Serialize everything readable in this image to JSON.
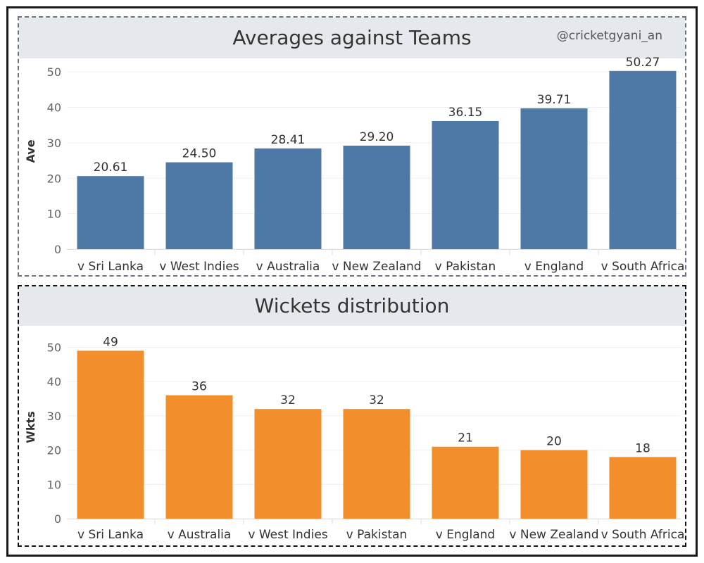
{
  "watermark": "@cricketgyani_an",
  "chart_data": [
    {
      "type": "bar",
      "title": "Averages against Teams",
      "ylabel": "Ave",
      "xlabel": "",
      "categories": [
        "v Sri Lanka",
        "v West Indies",
        "v Australia",
        "v New Zealand",
        "v Pakistan",
        "v England",
        "v South Africa"
      ],
      "values": [
        20.61,
        24.5,
        28.41,
        29.2,
        36.15,
        39.71,
        50.27
      ],
      "value_labels": [
        "20.61",
        "24.50",
        "28.41",
        "29.20",
        "36.15",
        "39.71",
        "50.27"
      ],
      "yticks": [
        0,
        10,
        20,
        30,
        40,
        50
      ],
      "ylim": [
        0,
        55
      ],
      "grid": true,
      "color": "#4e79a7"
    },
    {
      "type": "bar",
      "title": "Wickets distribution",
      "ylabel": "Wkts",
      "xlabel": "",
      "categories": [
        "v Sri Lanka",
        "v Australia",
        "v West Indies",
        "v Pakistan",
        "v England",
        "v New Zealand",
        "v South Africa"
      ],
      "values": [
        49,
        36,
        32,
        32,
        21,
        20,
        18
      ],
      "value_labels": [
        "49",
        "36",
        "32",
        "32",
        "21",
        "20",
        "18"
      ],
      "yticks": [
        0,
        10,
        20,
        30,
        40,
        50
      ],
      "ylim": [
        0,
        54
      ],
      "grid": true,
      "color": "#f28e2b"
    }
  ]
}
